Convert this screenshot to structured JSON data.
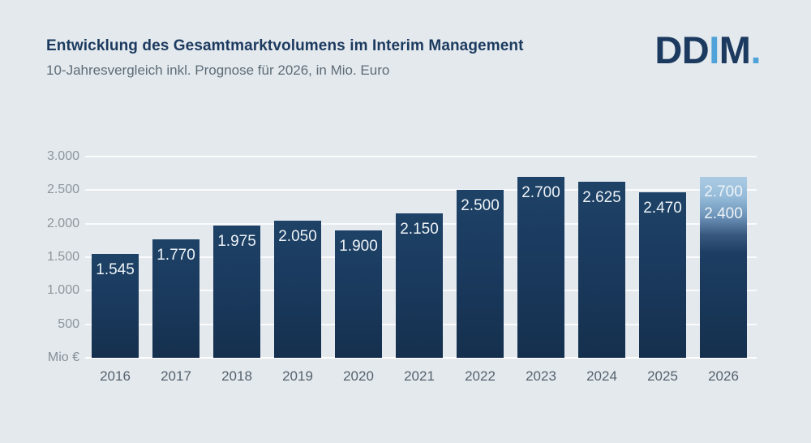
{
  "header": {
    "title": "Entwicklung des Gesamtmarktvolumens im Interim Management",
    "subtitle": "10-Jahresvergleich inkl. Prognose für 2026, in Mio. Euro",
    "logo": {
      "dd": "DD",
      "i": "I",
      "m": "M",
      "dot": "."
    }
  },
  "colors": {
    "background": "#e4e9ed",
    "navy": "#1c3a5f",
    "accent_blue": "#4fa3d8",
    "bar_dark": "#1b3a5e",
    "forecast_gradient_top": "#abcbe4",
    "gridline": "#f5f8fa",
    "subtitle_gray": "#5d6c77",
    "ytick_gray": "#8d969d",
    "xtick_gray": "#55626e",
    "bar_value_text": "#eef3f7"
  },
  "chart_data": {
    "type": "bar",
    "title": "Entwicklung des Gesamtmarktvolumens im Interim Management",
    "subtitle": "10-Jahresvergleich inkl. Prognose für 2026, in Mio. Euro",
    "unit_label": "Mio €",
    "categories": [
      "2016",
      "2017",
      "2018",
      "2019",
      "2020",
      "2021",
      "2022",
      "2023",
      "2024",
      "2025",
      "2026"
    ],
    "values": [
      1545,
      1770,
      1975,
      2050,
      1900,
      2150,
      2500,
      2700,
      2625,
      2470,
      2700
    ],
    "value_labels": [
      "1.545",
      "1.770",
      "1.975",
      "2.050",
      "1.900",
      "2.150",
      "2.500",
      "2.700",
      "2.625",
      "2.470",
      null
    ],
    "forecast": {
      "category": "2026",
      "upper": 2700,
      "lower": 2400,
      "upper_label": "2.700",
      "lower_label": "2.400"
    },
    "ylim": [
      0,
      3000
    ],
    "yticks": [
      500,
      1000,
      1500,
      2000,
      2500,
      3000
    ],
    "ytick_labels": [
      "500",
      "1.000",
      "1.500",
      "2.000",
      "2.500",
      "3.000"
    ],
    "grid": true,
    "legend": false
  }
}
